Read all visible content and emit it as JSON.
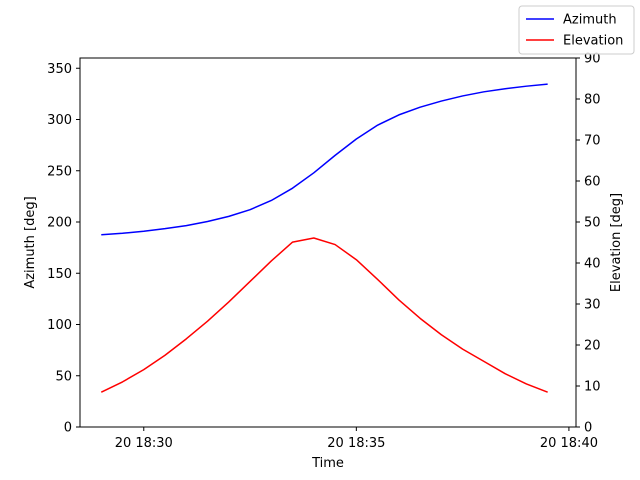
{
  "chart_data": {
    "type": "line",
    "xlabel": "Time",
    "ylabel_left": "Azimuth [deg]",
    "ylabel_right": "Elevation [deg]",
    "x": [
      "18:29:00",
      "18:29:30",
      "18:30:00",
      "18:30:30",
      "18:31:00",
      "18:31:30",
      "18:32:00",
      "18:32:30",
      "18:33:00",
      "18:33:30",
      "18:34:00",
      "18:34:30",
      "18:35:00",
      "18:35:30",
      "18:36:00",
      "18:36:30",
      "18:37:00",
      "18:37:30",
      "18:38:00",
      "18:38:30",
      "18:39:00",
      "18:39:30"
    ],
    "xlim": [
      "18:28:30",
      "18:40:10"
    ],
    "x_ticks": [
      {
        "value": "18:30:00",
        "label": "20 18:30"
      },
      {
        "value": "18:35:00",
        "label": "20 18:35"
      },
      {
        "value": "18:40:00",
        "label": "20 18:40"
      }
    ],
    "ylim_left": [
      0,
      360
    ],
    "yticks_left": [
      0,
      50,
      100,
      150,
      200,
      250,
      300,
      350
    ],
    "ylim_right": [
      0,
      90
    ],
    "yticks_right": [
      0,
      10,
      20,
      30,
      40,
      50,
      60,
      70,
      80,
      90
    ],
    "series": [
      {
        "name": "Azimuth",
        "axis": "left",
        "color": "#0000ff",
        "values": [
          187.5,
          189,
          191,
          193.5,
          196.5,
          200.5,
          205.5,
          212,
          221,
          233,
          248,
          265,
          281,
          294.5,
          304.5,
          312,
          318,
          323,
          327,
          330,
          332.5,
          334.5
        ]
      },
      {
        "name": "Elevation",
        "axis": "right",
        "color": "#ff0000",
        "values": [
          8.5,
          11,
          14,
          17.5,
          21.5,
          25.8,
          30.5,
          35.5,
          40.5,
          45.1,
          46.1,
          44.5,
          40.8,
          36,
          31,
          26.5,
          22.5,
          19,
          16,
          13,
          10.5,
          8.5
        ]
      }
    ],
    "legend_position": "top-right",
    "grid": false
  }
}
